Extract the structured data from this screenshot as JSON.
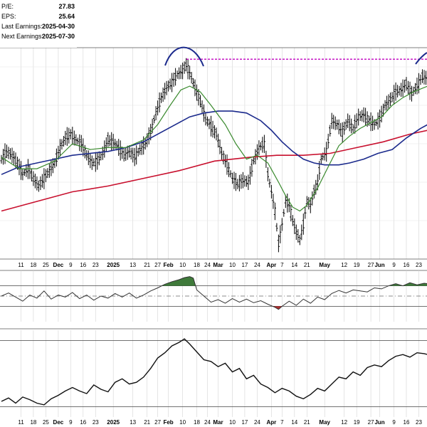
{
  "fundamentals": [
    {
      "label": "P/E:",
      "value": "27.83"
    },
    {
      "label": "EPS:",
      "value": "25.64"
    },
    {
      "label": "Last Earnings:",
      "value": "2025-04-30"
    },
    {
      "label": "Next Earnings:",
      "value": "2025-07-30"
    }
  ],
  "colors": {
    "bars": "#000000",
    "ma_short": "#3a8a2e",
    "ma_mid": "#1b2a8c",
    "ma_long": "#c8102e",
    "resistance": "#c000c0",
    "annotation": "#1b2a8c",
    "momentum_fill": "#3f7a3a",
    "momentum_fill_low": "#b03030",
    "grid": "#d4d4d4"
  },
  "chart_data": [
    {
      "type": "ohlc",
      "panel": "price",
      "x_axis": {
        "ticks": [
          {
            "label": "11",
            "bold": false,
            "day": 11
          },
          {
            "label": "18",
            "bold": false,
            "day": 18
          },
          {
            "label": "25",
            "bold": false,
            "day": 25
          },
          {
            "label": "Dec",
            "bold": true,
            "day": 32
          },
          {
            "label": "9",
            "bold": false,
            "day": 39
          },
          {
            "label": "16",
            "bold": false,
            "day": 46
          },
          {
            "label": "23",
            "bold": false,
            "day": 53
          },
          {
            "label": "2025",
            "bold": true,
            "day": 63
          },
          {
            "label": "13",
            "bold": false,
            "day": 74
          },
          {
            "label": "21",
            "bold": false,
            "day": 82
          },
          {
            "label": "27",
            "bold": false,
            "day": 88
          },
          {
            "label": "Feb",
            "bold": true,
            "day": 94
          },
          {
            "label": "10",
            "bold": false,
            "day": 102
          },
          {
            "label": "18",
            "bold": false,
            "day": 110
          },
          {
            "label": "24",
            "bold": false,
            "day": 116
          },
          {
            "label": "Mar",
            "bold": true,
            "day": 122
          },
          {
            "label": "10",
            "bold": false,
            "day": 130
          },
          {
            "label": "17",
            "bold": false,
            "day": 137
          },
          {
            "label": "24",
            "bold": false,
            "day": 144
          },
          {
            "label": "Apr",
            "bold": true,
            "day": 152
          },
          {
            "label": "7",
            "bold": false,
            "day": 158
          },
          {
            "label": "14",
            "bold": false,
            "day": 165
          },
          {
            "label": "21",
            "bold": false,
            "day": 172
          },
          {
            "label": "May",
            "bold": true,
            "day": 182
          },
          {
            "label": "12",
            "bold": false,
            "day": 193
          },
          {
            "label": "19",
            "bold": false,
            "day": 200
          },
          {
            "label": "27",
            "bold": false,
            "day": 208
          },
          {
            "label": "Jun",
            "bold": true,
            "day": 213
          },
          {
            "label": "9",
            "bold": false,
            "day": 221
          },
          {
            "label": "16",
            "bold": false,
            "day": 228
          },
          {
            "label": "23",
            "bold": false,
            "day": 235
          }
        ]
      },
      "close_path": [
        [
          0,
          52
        ],
        [
          3,
          56
        ],
        [
          6,
          54
        ],
        [
          9,
          50
        ],
        [
          12,
          44
        ],
        [
          15,
          47
        ],
        [
          18,
          42
        ],
        [
          21,
          38
        ],
        [
          24,
          42
        ],
        [
          27,
          46
        ],
        [
          30,
          50
        ],
        [
          33,
          58
        ],
        [
          36,
          63
        ],
        [
          39,
          65
        ],
        [
          42,
          62
        ],
        [
          45,
          60
        ],
        [
          48,
          54
        ],
        [
          51,
          50
        ],
        [
          54,
          51
        ],
        [
          57,
          55
        ],
        [
          60,
          62
        ],
        [
          63,
          61
        ],
        [
          66,
          58
        ],
        [
          69,
          54
        ],
        [
          72,
          56
        ],
        [
          75,
          53
        ],
        [
          78,
          57
        ],
        [
          81,
          60
        ],
        [
          84,
          66
        ],
        [
          87,
          76
        ],
        [
          90,
          84
        ],
        [
          93,
          89
        ],
        [
          96,
          92
        ],
        [
          99,
          96
        ],
        [
          102,
          98
        ],
        [
          104,
          101
        ],
        [
          106,
          97
        ],
        [
          109,
          89
        ],
        [
          112,
          82
        ],
        [
          115,
          73
        ],
        [
          118,
          69
        ],
        [
          121,
          65
        ],
        [
          124,
          55
        ],
        [
          127,
          49
        ],
        [
          130,
          42
        ],
        [
          133,
          39
        ],
        [
          136,
          41
        ],
        [
          139,
          40
        ],
        [
          142,
          51
        ],
        [
          145,
          58
        ],
        [
          148,
          60
        ],
        [
          150,
          44
        ],
        [
          152,
          35
        ],
        [
          154,
          25
        ],
        [
          156,
          8
        ],
        [
          158,
          18
        ],
        [
          160,
          30
        ],
        [
          162,
          28
        ],
        [
          164,
          20
        ],
        [
          166,
          14
        ],
        [
          168,
          10
        ],
        [
          170,
          18
        ],
        [
          172,
          30
        ],
        [
          174,
          28
        ],
        [
          176,
          35
        ],
        [
          178,
          40
        ],
        [
          180,
          52
        ],
        [
          183,
          56
        ],
        [
          186,
          72
        ],
        [
          189,
          70
        ],
        [
          192,
          66
        ],
        [
          195,
          72
        ],
        [
          198,
          68
        ],
        [
          201,
          74
        ],
        [
          204,
          75
        ],
        [
          207,
          72
        ],
        [
          210,
          70
        ],
        [
          213,
          73
        ],
        [
          216,
          80
        ],
        [
          219,
          83
        ],
        [
          222,
          87
        ],
        [
          225,
          88
        ],
        [
          228,
          91
        ],
        [
          231,
          86
        ],
        [
          234,
          90
        ],
        [
          237,
          95
        ],
        [
          240,
          94
        ]
      ],
      "ma_short": [
        [
          0,
          53
        ],
        [
          10,
          47
        ],
        [
          20,
          47
        ],
        [
          30,
          51
        ],
        [
          40,
          60
        ],
        [
          50,
          57
        ],
        [
          60,
          58
        ],
        [
          70,
          58
        ],
        [
          80,
          62
        ],
        [
          88,
          70
        ],
        [
          95,
          80
        ],
        [
          101,
          88
        ],
        [
          106,
          90
        ],
        [
          112,
          87
        ],
        [
          118,
          80
        ],
        [
          126,
          70
        ],
        [
          132,
          60
        ],
        [
          138,
          52
        ],
        [
          144,
          54
        ],
        [
          150,
          50
        ],
        [
          156,
          40
        ],
        [
          160,
          33
        ],
        [
          164,
          27
        ],
        [
          168,
          25
        ],
        [
          172,
          28
        ],
        [
          178,
          37
        ],
        [
          184,
          48
        ],
        [
          190,
          59
        ],
        [
          196,
          64
        ],
        [
          202,
          68
        ],
        [
          208,
          71
        ],
        [
          214,
          74
        ],
        [
          220,
          80
        ],
        [
          226,
          84
        ],
        [
          232,
          87
        ],
        [
          240,
          90
        ]
      ],
      "ma_mid": [
        [
          0,
          44
        ],
        [
          10,
          48
        ],
        [
          20,
          50
        ],
        [
          30,
          52
        ],
        [
          40,
          54
        ],
        [
          50,
          55
        ],
        [
          60,
          56
        ],
        [
          70,
          58
        ],
        [
          80,
          61
        ],
        [
          90,
          66
        ],
        [
          100,
          71
        ],
        [
          106,
          74
        ],
        [
          114,
          76
        ],
        [
          122,
          77
        ],
        [
          130,
          77
        ],
        [
          138,
          76
        ],
        [
          146,
          72
        ],
        [
          152,
          67
        ],
        [
          158,
          61
        ],
        [
          164,
          56
        ],
        [
          170,
          52
        ],
        [
          176,
          50
        ],
        [
          182,
          49
        ],
        [
          190,
          49
        ],
        [
          196,
          50
        ],
        [
          204,
          52
        ],
        [
          212,
          55
        ],
        [
          220,
          57
        ],
        [
          228,
          63
        ],
        [
          236,
          68
        ],
        [
          240,
          70
        ]
      ],
      "ma_long": [
        [
          0,
          25
        ],
        [
          20,
          30
        ],
        [
          40,
          35
        ],
        [
          60,
          38
        ],
        [
          80,
          42
        ],
        [
          100,
          46
        ],
        [
          120,
          51
        ],
        [
          140,
          53
        ],
        [
          155,
          54
        ],
        [
          170,
          54
        ],
        [
          185,
          55
        ],
        [
          200,
          58
        ],
        [
          215,
          61
        ],
        [
          230,
          65
        ],
        [
          240,
          67
        ]
      ],
      "resistance_level": 104,
      "y_domain": [
        0,
        110
      ]
    },
    {
      "type": "line",
      "panel": "momentum",
      "y_domain": [
        0,
        100
      ],
      "upper_band": 70,
      "lower_band": 30,
      "midline": 50,
      "series": [
        [
          0,
          50
        ],
        [
          4,
          56
        ],
        [
          8,
          48
        ],
        [
          12,
          40
        ],
        [
          16,
          52
        ],
        [
          20,
          46
        ],
        [
          24,
          60
        ],
        [
          28,
          44
        ],
        [
          32,
          52
        ],
        [
          36,
          48
        ],
        [
          40,
          57
        ],
        [
          44,
          45
        ],
        [
          48,
          52
        ],
        [
          52,
          42
        ],
        [
          56,
          50
        ],
        [
          60,
          46
        ],
        [
          64,
          55
        ],
        [
          68,
          48
        ],
        [
          72,
          56
        ],
        [
          76,
          46
        ],
        [
          80,
          52
        ],
        [
          84,
          60
        ],
        [
          88,
          66
        ],
        [
          92,
          73
        ],
        [
          96,
          78
        ],
        [
          100,
          82
        ],
        [
          103,
          86
        ],
        [
          106,
          88
        ],
        [
          108,
          85
        ],
        [
          110,
          62
        ],
        [
          114,
          50
        ],
        [
          118,
          38
        ],
        [
          122,
          43
        ],
        [
          126,
          36
        ],
        [
          130,
          45
        ],
        [
          134,
          38
        ],
        [
          138,
          44
        ],
        [
          142,
          37
        ],
        [
          146,
          41
        ],
        [
          150,
          34
        ],
        [
          154,
          28
        ],
        [
          156,
          24
        ],
        [
          158,
          30
        ],
        [
          162,
          40
        ],
        [
          166,
          32
        ],
        [
          170,
          44
        ],
        [
          174,
          36
        ],
        [
          178,
          48
        ],
        [
          182,
          43
        ],
        [
          186,
          55
        ],
        [
          190,
          61
        ],
        [
          194,
          56
        ],
        [
          198,
          62
        ],
        [
          202,
          60
        ],
        [
          206,
          58
        ],
        [
          210,
          66
        ],
        [
          214,
          64
        ],
        [
          218,
          70
        ],
        [
          222,
          74
        ],
        [
          226,
          70
        ],
        [
          230,
          76
        ],
        [
          234,
          72
        ],
        [
          238,
          75
        ],
        [
          240,
          74
        ]
      ]
    },
    {
      "type": "line",
      "panel": "relative",
      "y_domain": [
        0,
        100
      ],
      "upper_line": 88,
      "lower_line": 12,
      "series": [
        [
          0,
          18
        ],
        [
          4,
          22
        ],
        [
          8,
          16
        ],
        [
          12,
          23
        ],
        [
          16,
          20
        ],
        [
          20,
          16
        ],
        [
          24,
          14
        ],
        [
          28,
          21
        ],
        [
          32,
          25
        ],
        [
          36,
          30
        ],
        [
          40,
          34
        ],
        [
          44,
          30
        ],
        [
          48,
          27
        ],
        [
          52,
          37
        ],
        [
          56,
          32
        ],
        [
          60,
          29
        ],
        [
          64,
          40
        ],
        [
          68,
          44
        ],
        [
          72,
          38
        ],
        [
          76,
          40
        ],
        [
          80,
          46
        ],
        [
          84,
          56
        ],
        [
          88,
          68
        ],
        [
          92,
          74
        ],
        [
          96,
          82
        ],
        [
          100,
          86
        ],
        [
          103,
          90
        ],
        [
          106,
          84
        ],
        [
          110,
          75
        ],
        [
          114,
          66
        ],
        [
          118,
          64
        ],
        [
          122,
          58
        ],
        [
          126,
          62
        ],
        [
          130,
          52
        ],
        [
          134,
          56
        ],
        [
          138,
          44
        ],
        [
          142,
          48
        ],
        [
          146,
          38
        ],
        [
          150,
          34
        ],
        [
          154,
          28
        ],
        [
          158,
          33
        ],
        [
          162,
          30
        ],
        [
          166,
          24
        ],
        [
          170,
          21
        ],
        [
          174,
          26
        ],
        [
          178,
          33
        ],
        [
          182,
          30
        ],
        [
          186,
          38
        ],
        [
          190,
          46
        ],
        [
          194,
          44
        ],
        [
          198,
          52
        ],
        [
          202,
          48
        ],
        [
          206,
          57
        ],
        [
          210,
          60
        ],
        [
          214,
          58
        ],
        [
          218,
          65
        ],
        [
          222,
          70
        ],
        [
          226,
          72
        ],
        [
          230,
          69
        ],
        [
          234,
          74
        ],
        [
          238,
          73
        ],
        [
          240,
          72
        ]
      ]
    }
  ]
}
